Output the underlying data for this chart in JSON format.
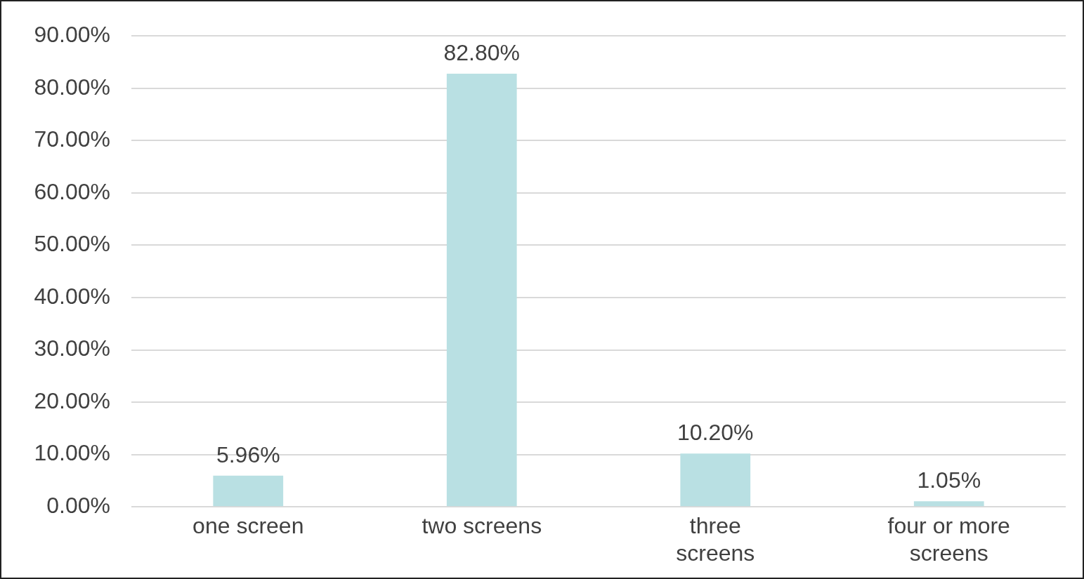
{
  "chart_data": {
    "type": "bar",
    "categories": [
      "one screen",
      "two screens",
      "three screens",
      "four or more screens"
    ],
    "values": [
      5.96,
      82.8,
      10.2,
      1.05
    ],
    "value_labels": [
      "5.96%",
      "82.80%",
      "10.20%",
      "1.05%"
    ],
    "color": "#b9e0e3",
    "ylim": [
      0,
      90
    ],
    "yticks": [
      {
        "value": 0,
        "label": "0.00%"
      },
      {
        "value": 10,
        "label": "10.00%"
      },
      {
        "value": 20,
        "label": "20.00%"
      },
      {
        "value": 30,
        "label": "30.00%"
      },
      {
        "value": 40,
        "label": "40.00%"
      },
      {
        "value": 50,
        "label": "50.00%"
      },
      {
        "value": 60,
        "label": "60.00%"
      },
      {
        "value": 70,
        "label": "70.00%"
      },
      {
        "value": 80,
        "label": "80.00%"
      },
      {
        "value": 90,
        "label": "90.00%"
      }
    ],
    "grid": "y",
    "legend": false
  }
}
